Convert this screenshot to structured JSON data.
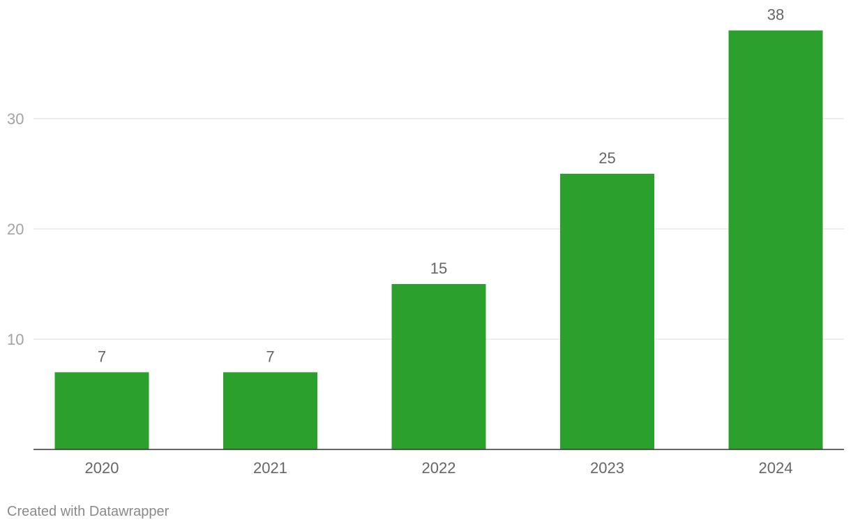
{
  "chart_data": {
    "type": "bar",
    "categories": [
      "2020",
      "2021",
      "2022",
      "2023",
      "2024"
    ],
    "values": [
      7,
      7,
      15,
      25,
      38
    ],
    "ylim": [
      0,
      40
    ],
    "yticks": [
      10,
      20,
      30
    ],
    "grid": true,
    "bar_color": "#2ca02c",
    "data_labels": true
  },
  "footer": {
    "credit": "Created with Datawrapper"
  }
}
